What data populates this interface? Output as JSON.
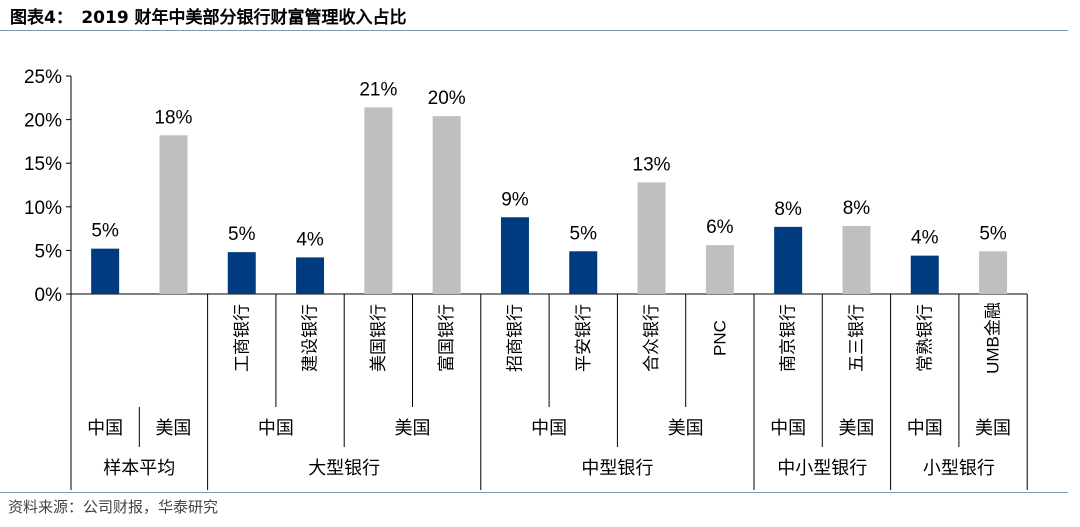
{
  "header": {
    "title": "图表4：　2019 财年中美部分银行财富管理收入占比"
  },
  "footer": {
    "source": "资料来源：公司财报，华泰研究"
  },
  "colors": {
    "china": "#003b80",
    "us": "#bfbfbf",
    "rule": "#7f97b2"
  },
  "chart_data": {
    "type": "bar",
    "title": "2019 财年中美部分银行财富管理收入占比",
    "ylim": [
      0,
      25
    ],
    "yticks": [
      "0%",
      "5%",
      "10%",
      "15%",
      "20%",
      "25%"
    ],
    "categories": [
      "",
      "",
      "工商银行",
      "建设银行",
      "美国银行",
      "富国银行",
      "招商银行",
      "平安银行",
      "合众银行",
      "PNC",
      "南京银行",
      "五三银行",
      "常熟银行",
      "UMB金融"
    ],
    "values": [
      5.2,
      18.2,
      4.8,
      4.2,
      21.4,
      20.4,
      8.8,
      4.9,
      12.8,
      5.6,
      7.7,
      7.8,
      4.4,
      4.9
    ],
    "data_labels": [
      "5%",
      "18%",
      "5%",
      "4%",
      "21%",
      "20%",
      "9%",
      "5%",
      "13%",
      "6%",
      "8%",
      "8%",
      "4%",
      "5%"
    ],
    "country": [
      "china",
      "us",
      "china",
      "china",
      "us",
      "us",
      "china",
      "china",
      "us",
      "us",
      "china",
      "us",
      "china",
      "us"
    ],
    "country_groups": [
      {
        "label": "中国",
        "from": 0,
        "to": 0
      },
      {
        "label": "美国",
        "from": 1,
        "to": 1
      },
      {
        "label": "中国",
        "from": 2,
        "to": 3
      },
      {
        "label": "美国",
        "from": 4,
        "to": 5
      },
      {
        "label": "中国",
        "from": 6,
        "to": 7
      },
      {
        "label": "美国",
        "from": 8,
        "to": 9
      },
      {
        "label": "中国",
        "from": 10,
        "to": 10
      },
      {
        "label": "美国",
        "from": 11,
        "to": 11
      },
      {
        "label": "中国",
        "from": 12,
        "to": 12
      },
      {
        "label": "美国",
        "from": 13,
        "to": 13
      }
    ],
    "size_groups": [
      {
        "label": "样本平均",
        "from": 0,
        "to": 1
      },
      {
        "label": "大型银行",
        "from": 2,
        "to": 5
      },
      {
        "label": "中型银行",
        "from": 6,
        "to": 9
      },
      {
        "label": "中小型银行",
        "from": 10,
        "to": 11
      },
      {
        "label": "小型银行",
        "from": 12,
        "to": 13
      }
    ]
  }
}
